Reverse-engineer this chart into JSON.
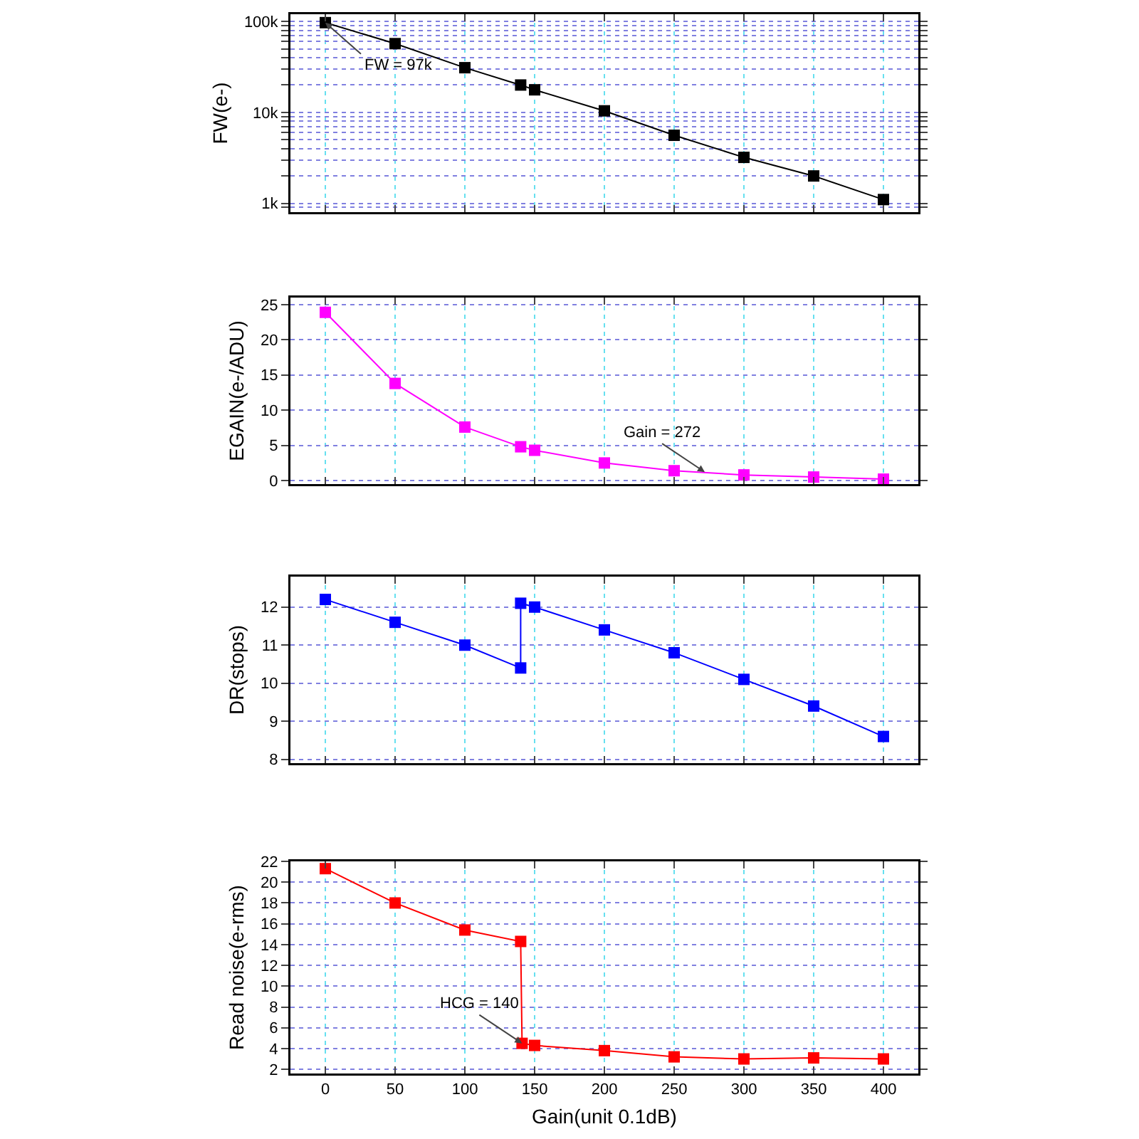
{
  "chart_data": [
    {
      "type": "line",
      "ylabel": "FW(e-)",
      "log": "y",
      "x": [
        0,
        50,
        100,
        140,
        150,
        200,
        250,
        300,
        350,
        400
      ],
      "xlim": [
        -25,
        425
      ],
      "xticks": [
        0,
        50,
        100,
        150,
        200,
        250,
        300,
        350,
        400
      ],
      "ylim": [
        800,
        120000
      ],
      "yticks": [
        {
          "value": 900,
          "label": null
        },
        {
          "value": 1000,
          "label": "1k"
        },
        {
          "value": 2000,
          "label": null
        },
        {
          "value": 3000,
          "label": null
        },
        {
          "value": 4000,
          "label": null
        },
        {
          "value": 5000,
          "label": null
        },
        {
          "value": 6000,
          "label": null
        },
        {
          "value": 7000,
          "label": null
        },
        {
          "value": 8000,
          "label": null
        },
        {
          "value": 9000,
          "label": null
        },
        {
          "value": 10000,
          "label": "10k"
        },
        {
          "value": 20000,
          "label": null
        },
        {
          "value": 30000,
          "label": null
        },
        {
          "value": 40000,
          "label": null
        },
        {
          "value": 50000,
          "label": null
        },
        {
          "value": 60000,
          "label": null
        },
        {
          "value": 70000,
          "label": null
        },
        {
          "value": 80000,
          "label": null
        },
        {
          "value": 90000,
          "label": null
        },
        {
          "value": 100000,
          "label": "100k"
        }
      ],
      "tick_labels": "y",
      "grid": true,
      "marker": "square",
      "line_style": "solid",
      "series": [
        {
          "color": "#000000",
          "values": [
            97000,
            57000,
            31000,
            20000,
            17700,
            10400,
            5600,
            3200,
            2000,
            1100
          ]
        }
      ],
      "annotations": [
        {
          "text": "FW = 97k",
          "x": 0,
          "y": 97000
        }
      ]
    },
    {
      "type": "line",
      "ylabel": "EGAIN(e-/ADU)",
      "x": [
        0,
        50,
        100,
        140,
        150,
        200,
        250,
        300,
        350,
        400
      ],
      "xlim": [
        -25,
        425
      ],
      "xticks": [
        0,
        50,
        100,
        150,
        200,
        250,
        300,
        350,
        400
      ],
      "ylim": [
        -0.5,
        26
      ],
      "yticks": [
        0,
        5,
        10,
        15,
        20,
        25
      ],
      "tick_labels": "y",
      "grid": true,
      "marker": "square",
      "line_style": "solid",
      "series": [
        {
          "color": "#ff00ff",
          "values": [
            23.9,
            13.8,
            7.6,
            4.8,
            4.3,
            2.5,
            1.4,
            0.8,
            0.5,
            0.2
          ]
        }
      ],
      "annotations": [
        {
          "text": "Gain = 272",
          "x": 272,
          "y": 1.2
        }
      ]
    },
    {
      "type": "line",
      "ylabel": "DR(stops)",
      "x": [
        0,
        50,
        100,
        140,
        140,
        150,
        200,
        250,
        300,
        350,
        400
      ],
      "xlim": [
        -25,
        425
      ],
      "xticks": [
        0,
        50,
        100,
        150,
        200,
        250,
        300,
        350,
        400
      ],
      "ylim": [
        7.9,
        12.8
      ],
      "yticks": [
        8,
        9,
        10,
        11,
        12
      ],
      "tick_labels": "y",
      "grid": true,
      "marker": "square",
      "line_style": "solid",
      "series": [
        {
          "color": "#0000ff",
          "values": [
            12.2,
            11.6,
            11.0,
            10.4,
            12.1,
            12.0,
            11.4,
            10.8,
            10.1,
            9.4,
            8.6
          ]
        }
      ]
    },
    {
      "type": "line",
      "ylabel": "Read noise(e-rms)",
      "xlabel": "Gain(unit 0.1dB)",
      "x": [
        0,
        50,
        100,
        140,
        141,
        150,
        200,
        250,
        300,
        350,
        400
      ],
      "xlim": [
        -25,
        425
      ],
      "xticks": [
        0,
        50,
        100,
        150,
        200,
        250,
        300,
        350,
        400
      ],
      "ylim": [
        1.6,
        22
      ],
      "yticks": [
        2,
        4,
        6,
        8,
        10,
        12,
        14,
        16,
        18,
        20,
        22
      ],
      "grid": true,
      "marker": "square",
      "line_style": "solid",
      "series": [
        {
          "color": "#ff0000",
          "values": [
            21.3,
            18.0,
            15.4,
            14.3,
            4.5,
            4.3,
            3.8,
            3.2,
            3.0,
            3.1,
            3.0
          ]
        }
      ],
      "annotations": [
        {
          "text": "HCG = 140",
          "x": 141,
          "y": 4.5
        }
      ]
    }
  ]
}
